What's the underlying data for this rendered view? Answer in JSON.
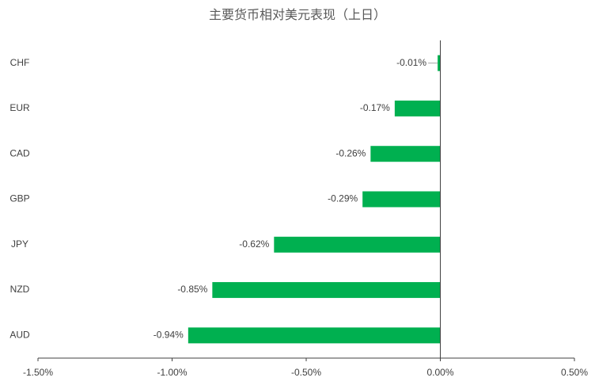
{
  "chart_data": {
    "type": "bar",
    "orientation": "horizontal",
    "title": "主要货币相对美元表现（上日）",
    "categories": [
      "CHF",
      "EUR",
      "CAD",
      "GBP",
      "JPY",
      "NZD",
      "AUD"
    ],
    "values": [
      -0.01,
      -0.17,
      -0.26,
      -0.29,
      -0.62,
      -0.85,
      -0.94
    ],
    "value_labels": [
      "-0.01%",
      "-0.17%",
      "-0.26%",
      "-0.29%",
      "-0.62%",
      "-0.85%",
      "-0.94%"
    ],
    "color": "#00b050",
    "xlim": [
      -1.5,
      0.5
    ],
    "xticks": [
      {
        "value": -1.5,
        "label": "-1.50%"
      },
      {
        "value": -1.0,
        "label": "-1.00%"
      },
      {
        "value": -0.5,
        "label": "-0.50%"
      },
      {
        "value": 0,
        "label": "0.00%"
      },
      {
        "value": 0.5,
        "label": "0.50%"
      }
    ],
    "grid": false
  }
}
